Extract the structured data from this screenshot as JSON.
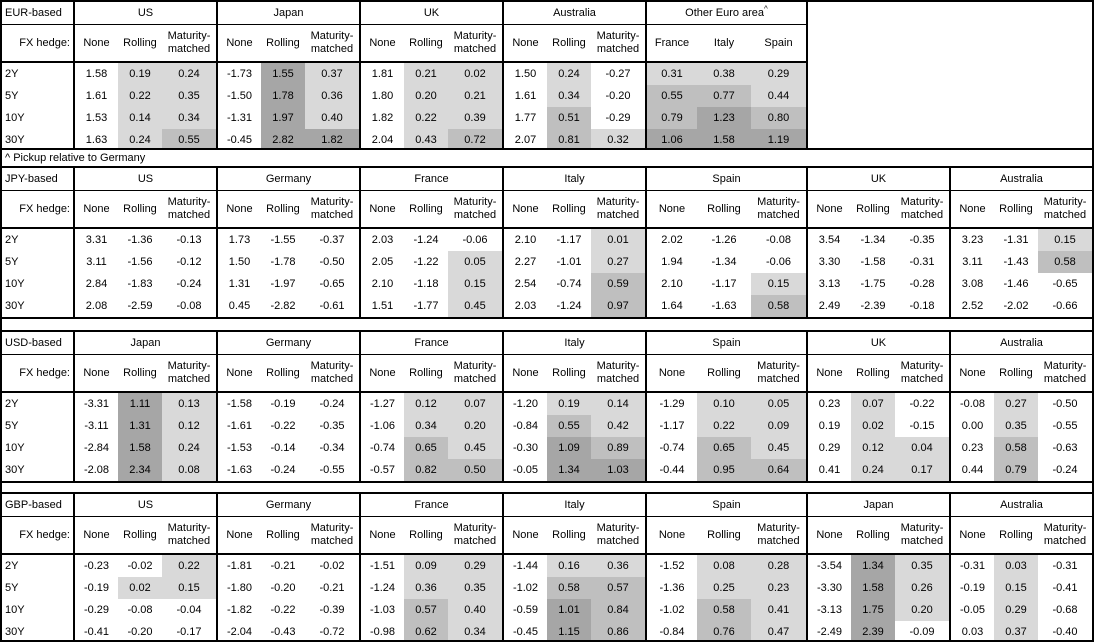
{
  "footnote": "^ Pickup relative to Germany",
  "headers": {
    "fx_hedge": "FX hedge:",
    "hedge_cols": [
      "None",
      "Rolling",
      "Maturity-matched"
    ],
    "tenors": [
      "2Y",
      "5Y",
      "10Y",
      "30Y"
    ]
  },
  "colors": {
    "background": "#FFFFFF",
    "border": "#000000",
    "shade_light": "#D9D9D9",
    "shade_medium": "#BFBFBF",
    "shade_dark": "#A6A6A6"
  },
  "shading_rule": {
    "applies_to": "Rolling and Maturity-matched columns, and all Other-Euro-area country columns; None columns are never shaded",
    "negative": "white",
    "light": "0.00 to 0.49",
    "medium": "0.50 to 0.99",
    "dark": "1.00 and above"
  },
  "chart_data": [
    {
      "type": "table",
      "title": "EUR-based",
      "row_labels": [
        "2Y",
        "5Y",
        "10Y",
        "30Y"
      ],
      "groups": [
        {
          "name": "US",
          "kind": "hedge",
          "values": [
            [
              1.58,
              0.19,
              0.24
            ],
            [
              1.61,
              0.22,
              0.35
            ],
            [
              1.53,
              0.14,
              0.34
            ],
            [
              1.63,
              0.24,
              0.55
            ]
          ]
        },
        {
          "name": "Japan",
          "kind": "hedge",
          "values": [
            [
              -1.73,
              1.55,
              0.37
            ],
            [
              -1.5,
              1.78,
              0.36
            ],
            [
              -1.31,
              1.97,
              0.4
            ],
            [
              -0.45,
              2.82,
              1.82
            ]
          ]
        },
        {
          "name": "UK",
          "kind": "hedge",
          "values": [
            [
              1.81,
              0.21,
              0.02
            ],
            [
              1.8,
              0.2,
              0.21
            ],
            [
              1.82,
              0.22,
              0.39
            ],
            [
              2.04,
              0.43,
              0.72
            ]
          ]
        },
        {
          "name": "Australia",
          "kind": "hedge",
          "values": [
            [
              1.5,
              0.24,
              -0.27
            ],
            [
              1.61,
              0.34,
              -0.2
            ],
            [
              1.77,
              0.51,
              -0.29
            ],
            [
              2.07,
              0.81,
              0.32
            ]
          ]
        },
        {
          "name": "Other Euro area",
          "footnote_mark": "^",
          "kind": "countries",
          "wide": true,
          "columns": [
            "France",
            "Italy",
            "Spain"
          ],
          "values": [
            [
              0.31,
              0.38,
              0.29
            ],
            [
              0.55,
              0.77,
              0.44
            ],
            [
              0.79,
              1.23,
              0.8
            ],
            [
              1.06,
              1.58,
              1.19
            ]
          ]
        }
      ]
    },
    {
      "type": "table",
      "title": "JPY-based",
      "row_labels": [
        "2Y",
        "5Y",
        "10Y",
        "30Y"
      ],
      "groups": [
        {
          "name": "US",
          "kind": "hedge",
          "values": [
            [
              3.31,
              -1.36,
              -0.13
            ],
            [
              3.11,
              -1.56,
              -0.12
            ],
            [
              2.84,
              -1.83,
              -0.24
            ],
            [
              2.08,
              -2.59,
              -0.08
            ]
          ]
        },
        {
          "name": "Germany",
          "kind": "hedge",
          "values": [
            [
              1.73,
              -1.55,
              -0.37
            ],
            [
              1.5,
              -1.78,
              -0.5
            ],
            [
              1.31,
              -1.97,
              -0.65
            ],
            [
              0.45,
              -2.82,
              -0.61
            ]
          ]
        },
        {
          "name": "France",
          "kind": "hedge",
          "values": [
            [
              2.03,
              -1.24,
              -0.06
            ],
            [
              2.05,
              -1.22,
              0.05
            ],
            [
              2.1,
              -1.18,
              0.15
            ],
            [
              1.51,
              -1.77,
              0.45
            ]
          ]
        },
        {
          "name": "Italy",
          "kind": "hedge",
          "values": [
            [
              2.1,
              -1.17,
              0.01
            ],
            [
              2.27,
              -1.01,
              0.27
            ],
            [
              2.54,
              -0.74,
              0.59
            ],
            [
              2.03,
              -1.24,
              0.97
            ]
          ]
        },
        {
          "name": "Spain",
          "kind": "hedge",
          "wide": true,
          "values": [
            [
              2.02,
              -1.26,
              -0.08
            ],
            [
              1.94,
              -1.34,
              -0.06
            ],
            [
              2.1,
              -1.17,
              0.15
            ],
            [
              1.64,
              -1.63,
              0.58
            ]
          ]
        },
        {
          "name": "UK",
          "kind": "hedge",
          "values": [
            [
              3.54,
              -1.34,
              -0.35
            ],
            [
              3.3,
              -1.58,
              -0.31
            ],
            [
              3.13,
              -1.75,
              -0.28
            ],
            [
              2.49,
              -2.39,
              -0.18
            ]
          ]
        },
        {
          "name": "Australia",
          "kind": "hedge",
          "values": [
            [
              3.23,
              -1.31,
              0.15
            ],
            [
              3.11,
              -1.43,
              0.58
            ],
            [
              3.08,
              -1.46,
              -0.65
            ],
            [
              2.52,
              -2.02,
              -0.66
            ]
          ]
        }
      ]
    },
    {
      "type": "table",
      "title": "USD-based",
      "row_labels": [
        "2Y",
        "5Y",
        "10Y",
        "30Y"
      ],
      "groups": [
        {
          "name": "Japan",
          "kind": "hedge",
          "values": [
            [
              -3.31,
              1.11,
              0.13
            ],
            [
              -3.11,
              1.31,
              0.12
            ],
            [
              -2.84,
              1.58,
              0.24
            ],
            [
              -2.08,
              2.34,
              0.08
            ]
          ]
        },
        {
          "name": "Germany",
          "kind": "hedge",
          "values": [
            [
              -1.58,
              -0.19,
              -0.24
            ],
            [
              -1.61,
              -0.22,
              -0.35
            ],
            [
              -1.53,
              -0.14,
              -0.34
            ],
            [
              -1.63,
              -0.24,
              -0.55
            ]
          ]
        },
        {
          "name": "France",
          "kind": "hedge",
          "values": [
            [
              -1.27,
              0.12,
              0.07
            ],
            [
              -1.06,
              0.34,
              0.2
            ],
            [
              -0.74,
              0.65,
              0.45
            ],
            [
              -0.57,
              0.82,
              0.5
            ]
          ]
        },
        {
          "name": "Italy",
          "kind": "hedge",
          "values": [
            [
              -1.2,
              0.19,
              0.14
            ],
            [
              -0.84,
              0.55,
              0.42
            ],
            [
              -0.3,
              1.09,
              0.89
            ],
            [
              -0.05,
              1.34,
              1.03
            ]
          ]
        },
        {
          "name": "Spain",
          "kind": "hedge",
          "wide": true,
          "values": [
            [
              -1.29,
              0.1,
              0.05
            ],
            [
              -1.17,
              0.22,
              0.09
            ],
            [
              -0.74,
              0.65,
              0.45
            ],
            [
              -0.44,
              0.95,
              0.64
            ]
          ]
        },
        {
          "name": "UK",
          "kind": "hedge",
          "values": [
            [
              0.23,
              0.07,
              -0.22
            ],
            [
              0.19,
              0.02,
              -0.15
            ],
            [
              0.29,
              0.12,
              0.04
            ],
            [
              0.41,
              0.24,
              0.17
            ]
          ]
        },
        {
          "name": "Australia",
          "kind": "hedge",
          "values": [
            [
              -0.08,
              0.27,
              -0.5
            ],
            [
              0.0,
              0.35,
              -0.55
            ],
            [
              0.23,
              0.58,
              -0.63
            ],
            [
              0.44,
              0.79,
              -0.24
            ]
          ]
        }
      ]
    },
    {
      "type": "table",
      "title": "GBP-based",
      "row_labels": [
        "2Y",
        "5Y",
        "10Y",
        "30Y"
      ],
      "groups": [
        {
          "name": "US",
          "kind": "hedge",
          "values": [
            [
              -0.23,
              -0.02,
              0.22
            ],
            [
              -0.19,
              0.02,
              0.15
            ],
            [
              -0.29,
              -0.08,
              -0.04
            ],
            [
              -0.41,
              -0.2,
              -0.17
            ]
          ]
        },
        {
          "name": "Germany",
          "kind": "hedge",
          "values": [
            [
              -1.81,
              -0.21,
              -0.02
            ],
            [
              -1.8,
              -0.2,
              -0.21
            ],
            [
              -1.82,
              -0.22,
              -0.39
            ],
            [
              -2.04,
              -0.43,
              -0.72
            ]
          ]
        },
        {
          "name": "France",
          "kind": "hedge",
          "values": [
            [
              -1.51,
              0.09,
              0.29
            ],
            [
              -1.24,
              0.36,
              0.35
            ],
            [
              -1.03,
              0.57,
              0.4
            ],
            [
              -0.98,
              0.62,
              0.34
            ]
          ]
        },
        {
          "name": "Italy",
          "kind": "hedge",
          "values": [
            [
              -1.44,
              0.16,
              0.36
            ],
            [
              -1.02,
              0.58,
              0.57
            ],
            [
              -0.59,
              1.01,
              0.84
            ],
            [
              -0.45,
              1.15,
              0.86
            ]
          ]
        },
        {
          "name": "Spain",
          "kind": "hedge",
          "wide": true,
          "values": [
            [
              -1.52,
              0.08,
              0.28
            ],
            [
              -1.36,
              0.25,
              0.23
            ],
            [
              -1.02,
              0.58,
              0.41
            ],
            [
              -0.84,
              0.76,
              0.47
            ]
          ]
        },
        {
          "name": "Japan",
          "kind": "hedge",
          "values": [
            [
              -3.54,
              1.34,
              0.35
            ],
            [
              -3.3,
              1.58,
              0.26
            ],
            [
              -3.13,
              1.75,
              0.2
            ],
            [
              -2.49,
              2.39,
              -0.09
            ]
          ]
        },
        {
          "name": "Australia",
          "kind": "hedge",
          "values": [
            [
              -0.31,
              0.03,
              -0.31
            ],
            [
              -0.19,
              0.15,
              -0.41
            ],
            [
              -0.05,
              0.29,
              -0.68
            ],
            [
              0.03,
              0.37,
              -0.4
            ]
          ]
        }
      ]
    }
  ]
}
